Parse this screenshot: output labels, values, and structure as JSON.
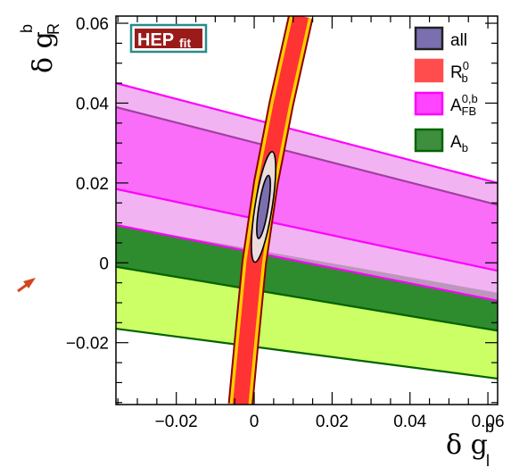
{
  "chart_data": {
    "type": "contour",
    "title": "",
    "xlabel": {
      "main": "δ g",
      "sub": "l",
      "sup": "b"
    },
    "ylabel": {
      "main": "δ g",
      "sub": "R",
      "sup": "b"
    },
    "xlim": [
      -0.0355,
      0.0625
    ],
    "ylim": [
      -0.0355,
      0.0618
    ],
    "xticks": [
      -0.02,
      0,
      0.02,
      0.04,
      0.06
    ],
    "yticks": [
      -0.02,
      0,
      0.02,
      0.04,
      0.06
    ],
    "xtick_labels": [
      "−0.02",
      "0",
      "0.02",
      "0.04",
      "0.06"
    ],
    "ytick_labels": [
      "−0.02",
      "0",
      "0.02",
      "0.04",
      "0.06"
    ],
    "grid": false,
    "legend_position": "top-right",
    "logo": {
      "main": "HEP",
      "sub": "fit"
    },
    "series": [
      {
        "name": "A_b",
        "label_main": "A",
        "label_sub": "b",
        "label_sup": "",
        "color_outer": "#ccff66",
        "color_inner": "#2e8b2e",
        "edge": "#006400",
        "outer_upper": [
          [
            -0.0355,
            0.0095
          ],
          [
            0.0625,
            -0.0075
          ]
        ],
        "inner_upper": [
          [
            -0.0355,
            0.0095
          ],
          [
            0.0625,
            -0.0075
          ]
        ],
        "inner_lower": [
          [
            -0.0355,
            -0.001
          ],
          [
            0.0625,
            -0.017
          ]
        ],
        "outer_lower": [
          [
            -0.0355,
            -0.0165
          ],
          [
            0.0625,
            -0.029
          ]
        ]
      },
      {
        "name": "A_FB^0,b",
        "label_main": "A",
        "label_sub": "FB",
        "label_sup": "0,b",
        "color_outer": "#ee99ee",
        "color_inner": "#ff33ff",
        "edge": "#ff00ff",
        "outer_upper": [
          [
            -0.0355,
            0.045
          ],
          [
            0.0625,
            0.02
          ]
        ],
        "inner_upper": [
          [
            -0.0355,
            0.039
          ],
          [
            0.0625,
            0.0145
          ]
        ],
        "inner_lower": [
          [
            -0.0355,
            0.0185
          ],
          [
            0.0625,
            -0.002
          ]
        ],
        "outer_lower": [
          [
            -0.0355,
            0.0095
          ],
          [
            0.0625,
            -0.0095
          ]
        ]
      },
      {
        "name": "R_b^0",
        "label_main": "R",
        "label_sub": "b",
        "label_sup": "0",
        "color_outer": "#ffcc00",
        "color_inner": "#ff3333",
        "edge": "#cc0000",
        "center": [
          [
            -0.0035,
            -0.0355
          ],
          [
            -0.002,
            -0.02
          ],
          [
            0.0,
            0.0
          ],
          [
            0.003,
            0.02
          ],
          [
            0.007,
            0.04
          ],
          [
            0.012,
            0.0618
          ]
        ],
        "half_width_inner": 0.002,
        "half_width_outer": 0.0028
      },
      {
        "name": "all",
        "label_main": "all",
        "label_sub": "",
        "label_sup": "",
        "color_outer": "#ecdcdc",
        "color_inner": "#7b6fb0",
        "edge": "#000000",
        "ellipse_center": [
          0.0024,
          0.014
        ],
        "inner": {
          "rx": 0.0012,
          "ry": 0.008,
          "angle": 9
        },
        "outer": {
          "rx": 0.0022,
          "ry": 0.014,
          "angle": 9
        }
      }
    ]
  }
}
